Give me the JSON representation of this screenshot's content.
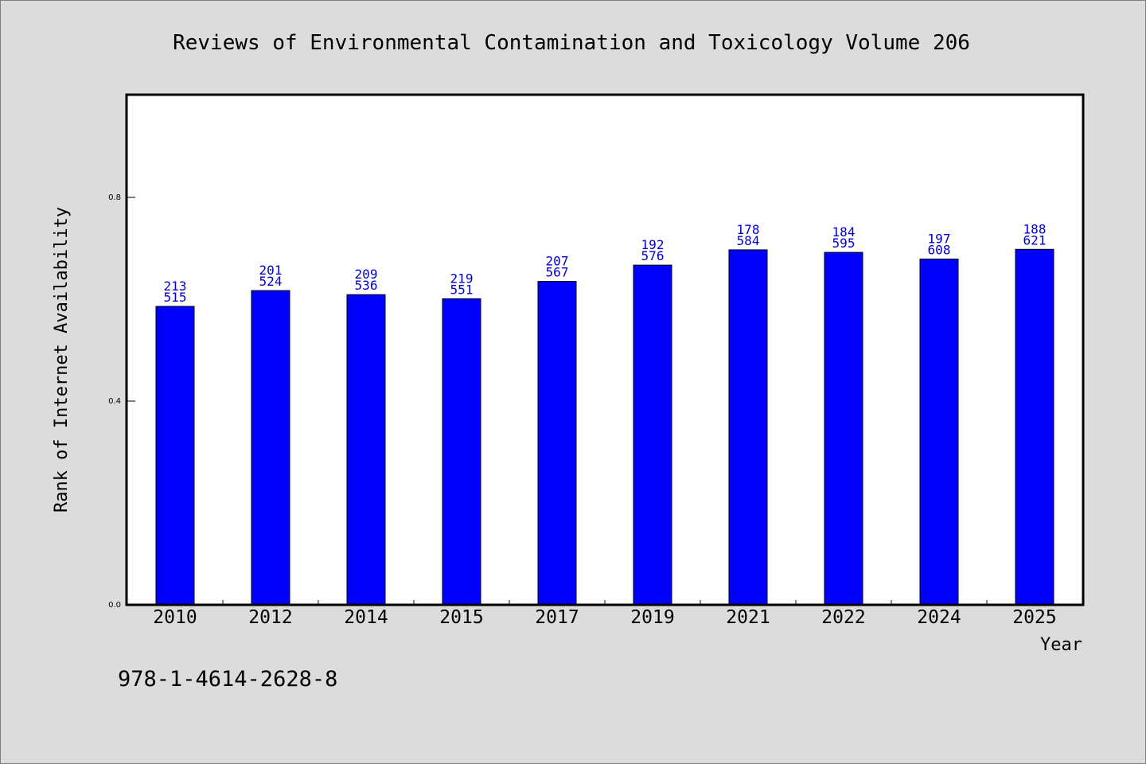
{
  "chart_data": {
    "type": "bar",
    "title": "Reviews of Environmental Contamination and Toxicology Volume 206",
    "xlabel": "Year",
    "ylabel": "Rank of Internet Availability",
    "categories": [
      "2010",
      "2012",
      "2014",
      "2015",
      "2017",
      "2019",
      "2021",
      "2022",
      "2024",
      "2025"
    ],
    "values": [
      0.586,
      0.617,
      0.609,
      0.601,
      0.635,
      0.667,
      0.697,
      0.692,
      0.679,
      0.698
    ],
    "label_top": [
      "213",
      "201",
      "209",
      "219",
      "207",
      "192",
      "178",
      "184",
      "197",
      "188"
    ],
    "label_bottom": [
      "515",
      "524",
      "536",
      "551",
      "567",
      "576",
      "584",
      "595",
      "608",
      "621"
    ],
    "ylim": [
      0,
      1.0
    ],
    "yticks": [
      "0.0",
      "0.4",
      "0.8"
    ],
    "ytick_values": [
      0.0,
      0.4,
      0.8
    ],
    "grid": false,
    "bar_color": "#0000ff",
    "label_color": "#0000cc",
    "background_color": "#dcdcdc",
    "plot_background_color": "#ffffff"
  },
  "footnote": "978-1-4614-2628-8"
}
